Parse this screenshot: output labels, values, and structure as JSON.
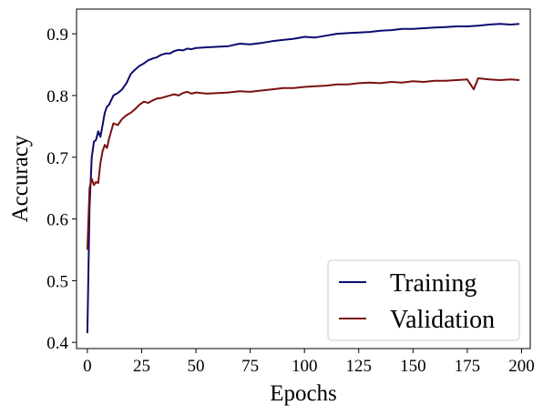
{
  "chart_data": {
    "type": "line",
    "title": "",
    "xlabel": "Epochs",
    "ylabel": "Accuracy",
    "xlim": [
      -5,
      204
    ],
    "ylim": [
      0.39,
      0.94
    ],
    "xticks": [
      0,
      25,
      50,
      75,
      100,
      125,
      150,
      175,
      200
    ],
    "yticks": [
      0.4,
      0.5,
      0.6,
      0.7,
      0.8,
      0.9
    ],
    "grid": false,
    "legend_position": "lower-right",
    "series": [
      {
        "name": "Training",
        "color": "#0b0b6e",
        "x": [
          0,
          1,
          2,
          3,
          4,
          5,
          6,
          7,
          8,
          9,
          10,
          12,
          14,
          16,
          18,
          20,
          22,
          24,
          26,
          28,
          30,
          32,
          34,
          36,
          38,
          40,
          42,
          44,
          46,
          48,
          50,
          55,
          60,
          65,
          70,
          75,
          80,
          85,
          90,
          95,
          100,
          105,
          110,
          115,
          120,
          125,
          130,
          135,
          140,
          145,
          150,
          155,
          160,
          165,
          170,
          175,
          180,
          185,
          190,
          195,
          199
        ],
        "y": [
          0.415,
          0.62,
          0.7,
          0.725,
          0.728,
          0.742,
          0.733,
          0.752,
          0.772,
          0.782,
          0.785,
          0.8,
          0.804,
          0.81,
          0.82,
          0.835,
          0.842,
          0.848,
          0.852,
          0.857,
          0.86,
          0.862,
          0.866,
          0.868,
          0.868,
          0.872,
          0.874,
          0.873,
          0.876,
          0.875,
          0.877,
          0.878,
          0.879,
          0.88,
          0.884,
          0.883,
          0.885,
          0.888,
          0.89,
          0.892,
          0.895,
          0.894,
          0.897,
          0.9,
          0.901,
          0.902,
          0.903,
          0.905,
          0.906,
          0.908,
          0.908,
          0.909,
          0.91,
          0.911,
          0.912,
          0.912,
          0.913,
          0.915,
          0.916,
          0.915,
          0.916
        ]
      },
      {
        "name": "Validation",
        "color": "#7a1010",
        "x": [
          0,
          1,
          2,
          3,
          4,
          5,
          6,
          7,
          8,
          9,
          10,
          12,
          14,
          16,
          18,
          20,
          22,
          24,
          26,
          28,
          30,
          32,
          34,
          36,
          38,
          40,
          42,
          44,
          46,
          48,
          50,
          55,
          60,
          65,
          70,
          75,
          80,
          85,
          90,
          95,
          100,
          105,
          110,
          115,
          120,
          125,
          130,
          135,
          140,
          145,
          150,
          155,
          160,
          165,
          170,
          175,
          178,
          180,
          185,
          190,
          195,
          199
        ],
        "y": [
          0.55,
          0.65,
          0.665,
          0.655,
          0.66,
          0.658,
          0.69,
          0.71,
          0.72,
          0.715,
          0.73,
          0.755,
          0.752,
          0.762,
          0.768,
          0.772,
          0.778,
          0.785,
          0.79,
          0.788,
          0.792,
          0.795,
          0.796,
          0.798,
          0.8,
          0.802,
          0.8,
          0.804,
          0.806,
          0.803,
          0.805,
          0.803,
          0.804,
          0.805,
          0.807,
          0.806,
          0.808,
          0.81,
          0.812,
          0.812,
          0.814,
          0.815,
          0.816,
          0.818,
          0.818,
          0.82,
          0.821,
          0.82,
          0.822,
          0.821,
          0.823,
          0.822,
          0.824,
          0.824,
          0.825,
          0.826,
          0.81,
          0.828,
          0.826,
          0.825,
          0.826,
          0.825
        ]
      }
    ]
  }
}
